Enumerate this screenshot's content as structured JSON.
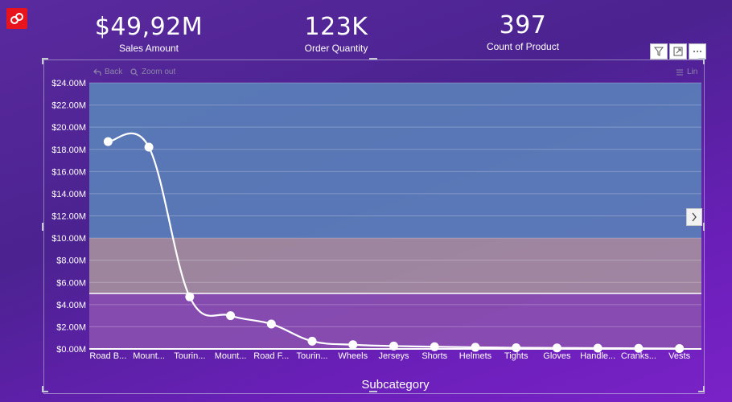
{
  "kpis": [
    {
      "value": "$49,92M",
      "label": "Sales Amount"
    },
    {
      "value": "123K",
      "label": "Order Quantity"
    },
    {
      "value": "397",
      "label": "Count of Product"
    }
  ],
  "toolbar": {
    "back_label": "Back",
    "zoom_out_label": "Zoom out",
    "legend_label": "Lin"
  },
  "colors": {
    "band_high": "#5a7fb8",
    "band_mid": "#a48e9e",
    "band_low": "#8a4fb0",
    "line": "#ffffff"
  },
  "chart_data": {
    "type": "line",
    "xlabel": "Subcategory",
    "ylabel": "",
    "ylim": [
      0,
      24000000
    ],
    "y_ticks": [
      "$0.00M",
      "$2.00M",
      "$4.00M",
      "$6.00M",
      "$8.00M",
      "$10.00M",
      "$12.00M",
      "$14.00M",
      "$16.00M",
      "$18.00M",
      "$20.00M",
      "$22.00M",
      "$24.00M"
    ],
    "y_tick_values": [
      0,
      2000000,
      4000000,
      6000000,
      8000000,
      10000000,
      12000000,
      14000000,
      16000000,
      18000000,
      20000000,
      22000000,
      24000000
    ],
    "categories": [
      "Road B...",
      "Mount...",
      "Tourin...",
      "Mount...",
      "Road F...",
      "Tourin...",
      "Wheels",
      "Jerseys",
      "Shorts",
      "Helmets",
      "Tights",
      "Gloves",
      "Handle...",
      "Cranks...",
      "Vests"
    ],
    "values": [
      18700000,
      18200000,
      4700000,
      3000000,
      2250000,
      700000,
      380000,
      260000,
      200000,
      150000,
      110000,
      90000,
      70000,
      55000,
      40000
    ],
    "bands": [
      {
        "from": 10000000,
        "to": 24000000,
        "color": "#5a7fb8"
      },
      {
        "from": 5000000,
        "to": 10000000,
        "color": "#a48e9e"
      },
      {
        "from": 0,
        "to": 5000000,
        "color": "#8a4fb0"
      }
    ],
    "reference_line": 5000000,
    "grid": true
  }
}
